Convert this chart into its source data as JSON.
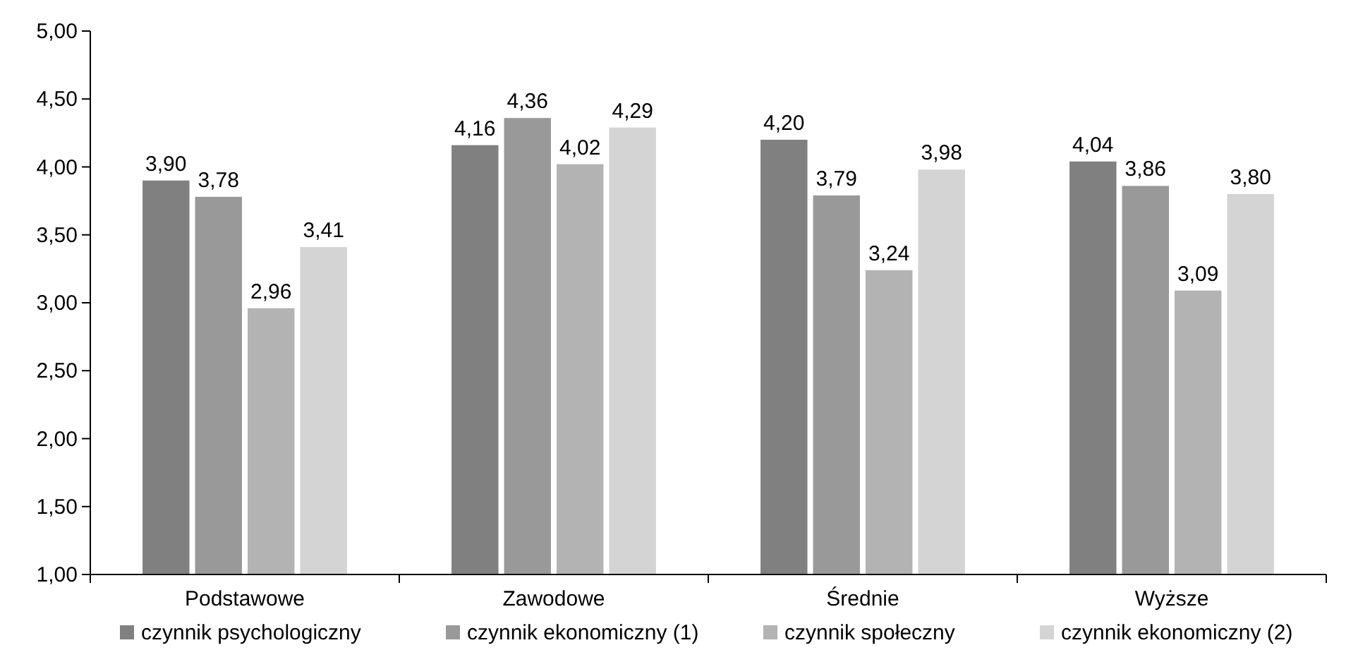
{
  "chart_data": {
    "type": "bar",
    "categories": [
      "Podstawowe",
      "Zawodowe",
      "Średnie",
      "Wyższe"
    ],
    "series": [
      {
        "name": "czynnik psychologiczny",
        "color": "#808080",
        "values": [
          3.9,
          4.16,
          4.2,
          4.04
        ],
        "value_labels": [
          "3,90",
          "4,16",
          "4,20",
          "4,04"
        ]
      },
      {
        "name": "czynnik ekonomiczny (1)",
        "color": "#999999",
        "values": [
          3.78,
          4.36,
          3.79,
          3.86
        ],
        "value_labels": [
          "3,78",
          "4,36",
          "3,79",
          "3,86"
        ]
      },
      {
        "name": "czynnik społeczny",
        "color": "#b3b3b3",
        "values": [
          2.96,
          4.02,
          3.24,
          3.09
        ],
        "value_labels": [
          "2,96",
          "4,02",
          "3,24",
          "3,09"
        ]
      },
      {
        "name": "czynnik ekonomiczny (2)",
        "color": "#d4d4d4",
        "values": [
          3.41,
          4.29,
          3.98,
          3.8
        ],
        "value_labels": [
          "3,41",
          "4,29",
          "3,98",
          "3,80"
        ]
      }
    ],
    "ylim": [
      1,
      5
    ],
    "yticks": [
      {
        "value": 1,
        "label": "1,00"
      },
      {
        "value": 1.5,
        "label": "1,50"
      },
      {
        "value": 2,
        "label": "2,00"
      },
      {
        "value": 2.5,
        "label": "2,50"
      },
      {
        "value": 3,
        "label": "3,00"
      },
      {
        "value": 3.5,
        "label": "3,50"
      },
      {
        "value": 4,
        "label": "4,00"
      },
      {
        "value": 4.5,
        "label": "4,50"
      },
      {
        "value": 5,
        "label": "5,00"
      }
    ],
    "grid": false,
    "legend": "bottom"
  }
}
